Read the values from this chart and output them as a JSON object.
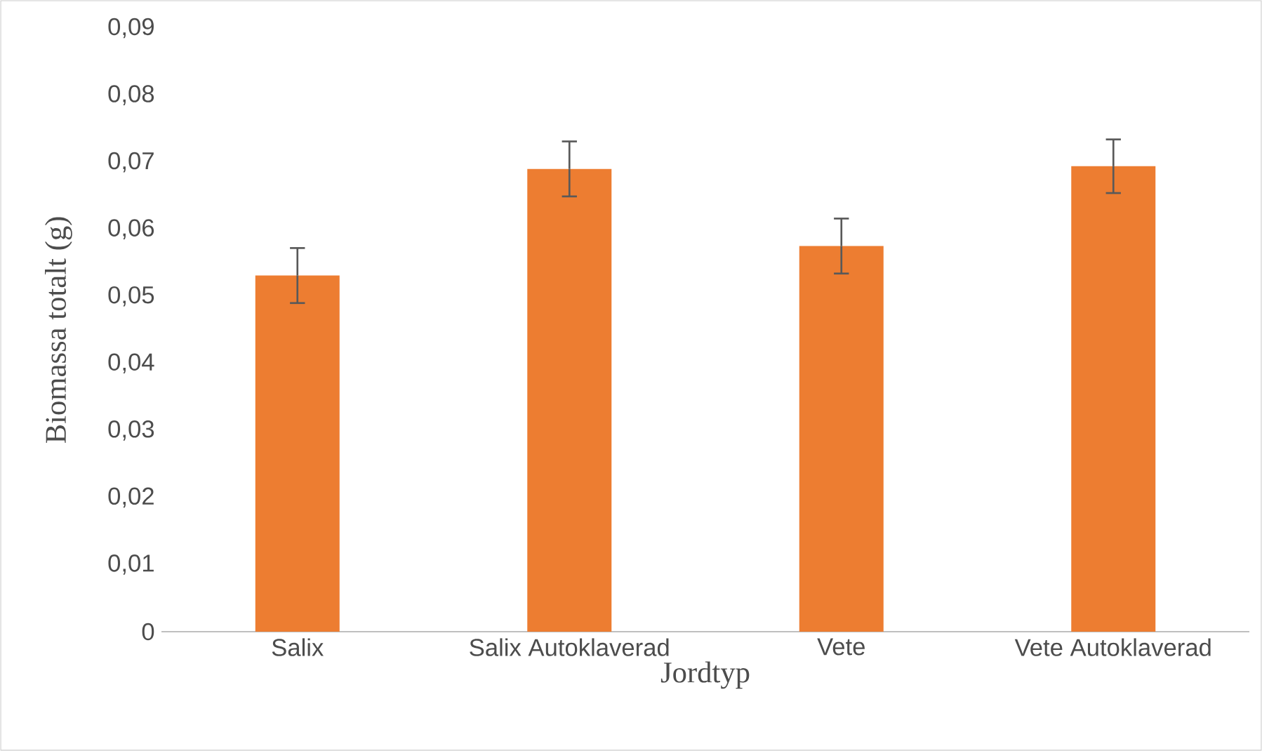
{
  "chart_data": {
    "type": "bar",
    "xlabel": "Jordtyp",
    "ylabel": "Biomassa totalt (g)",
    "categories": [
      "Salix",
      "Salix Autoklaverad",
      "Vete",
      "Vete Autoklaverad"
    ],
    "values": [
      0.0531,
      0.069,
      0.0575,
      0.0694
    ],
    "errors": [
      0.0041,
      0.0041,
      0.0041,
      0.004
    ],
    "color": "#ed7d31",
    "ylim": [
      0,
      0.09
    ],
    "yticks": [
      {
        "value": 0,
        "label": "0"
      },
      {
        "value": 0.01,
        "label": "0,01"
      },
      {
        "value": 0.02,
        "label": "0,02"
      },
      {
        "value": 0.03,
        "label": "0,03"
      },
      {
        "value": 0.04,
        "label": "0,04"
      },
      {
        "value": 0.05,
        "label": "0,05"
      },
      {
        "value": 0.06,
        "label": "0,06"
      },
      {
        "value": 0.07,
        "label": "0,07"
      },
      {
        "value": 0.08,
        "label": "0,08"
      },
      {
        "value": 0.09,
        "label": "0,09"
      }
    ]
  }
}
